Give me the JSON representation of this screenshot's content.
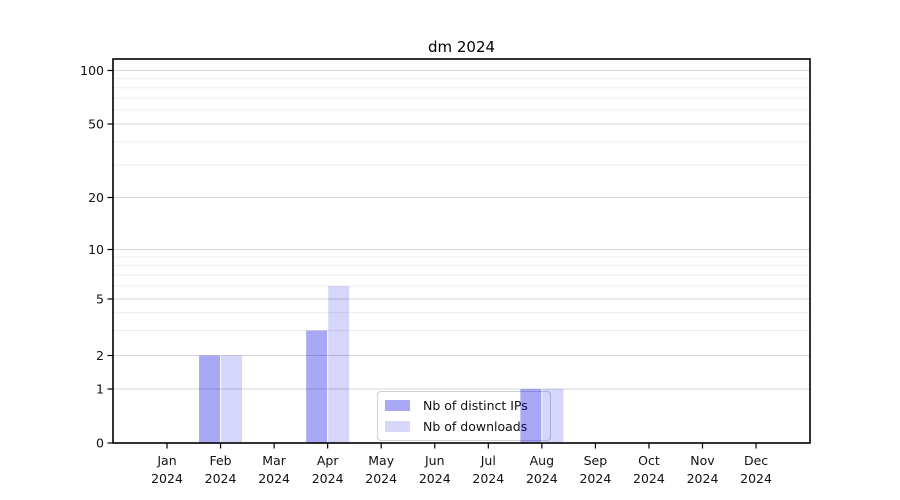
{
  "chart_data": {
    "type": "bar",
    "title": "dm 2024",
    "x": {
      "months": [
        "Jan",
        "Feb",
        "Mar",
        "Apr",
        "May",
        "Jun",
        "Jul",
        "Aug",
        "Sep",
        "Oct",
        "Nov",
        "Dec"
      ],
      "year": "2024"
    },
    "series": [
      {
        "name": "Nb of distinct IPs",
        "values": [
          0,
          2,
          0,
          3,
          0,
          0,
          0,
          1,
          0,
          0,
          0,
          0
        ],
        "color": "#0000e0",
        "opacity": 0.34,
        "legend_swatch": "#a8a8f5"
      },
      {
        "name": "Nb of downloads",
        "values": [
          0,
          2,
          0,
          6,
          0,
          0,
          0,
          1,
          0,
          0,
          0,
          0
        ],
        "color": "#0000e0",
        "opacity": 0.16,
        "legend_swatch": "#d7d7fa"
      }
    ],
    "y_axis": {
      "ticks": [
        0,
        1,
        2,
        5,
        10,
        20,
        50,
        100
      ],
      "minor_ticks": [
        3,
        4,
        6,
        7,
        8,
        9,
        30,
        40,
        60,
        70,
        80,
        90
      ],
      "scale": "log-like with 0 baseline",
      "ylim": [
        0,
        116
      ]
    },
    "grid": true,
    "legend_position": "lower center"
  },
  "colors": {
    "grid_major": "#d6d6d6",
    "grid_minor": "#eeeeee",
    "axis": "#000000",
    "tick_label": "#111111",
    "background": "#ffffff",
    "legend_border": "#cfcfcf"
  }
}
